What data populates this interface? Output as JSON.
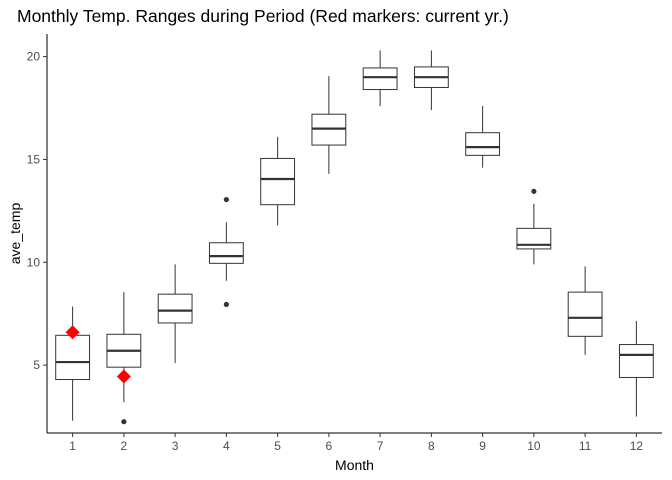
{
  "chart_data": {
    "type": "boxplot",
    "title": "Monthly Temp. Ranges during Period (Red markers: current yr.)",
    "xlabel": "Month",
    "ylabel": "ave_temp",
    "ylim": [
      1.7,
      21.1
    ],
    "yticks": [
      5,
      10,
      15,
      20
    ],
    "grid": false,
    "categories": [
      "1",
      "2",
      "3",
      "4",
      "5",
      "6",
      "7",
      "8",
      "9",
      "10",
      "11",
      "12"
    ],
    "boxes": [
      {
        "month": "1",
        "whisker_low": 2.3,
        "q1": 4.3,
        "median": 5.15,
        "q3": 6.45,
        "whisker_high": 7.85,
        "outliers": []
      },
      {
        "month": "2",
        "whisker_low": 3.2,
        "q1": 4.9,
        "median": 5.7,
        "q3": 6.5,
        "whisker_high": 8.55,
        "outliers": [
          2.25
        ]
      },
      {
        "month": "3",
        "whisker_low": 5.1,
        "q1": 7.05,
        "median": 7.65,
        "q3": 8.45,
        "whisker_high": 9.9,
        "outliers": []
      },
      {
        "month": "4",
        "whisker_low": 9.1,
        "q1": 9.95,
        "median": 10.3,
        "q3": 10.95,
        "whisker_high": 11.95,
        "outliers": [
          13.05,
          7.95
        ]
      },
      {
        "month": "5",
        "whisker_low": 11.8,
        "q1": 12.8,
        "median": 14.05,
        "q3": 15.05,
        "whisker_high": 16.1,
        "outliers": []
      },
      {
        "month": "6",
        "whisker_low": 14.3,
        "q1": 15.7,
        "median": 16.5,
        "q3": 17.2,
        "whisker_high": 19.05,
        "outliers": []
      },
      {
        "month": "7",
        "whisker_low": 17.6,
        "q1": 18.4,
        "median": 19.0,
        "q3": 19.45,
        "whisker_high": 20.3,
        "outliers": []
      },
      {
        "month": "8",
        "whisker_low": 17.4,
        "q1": 18.5,
        "median": 19.0,
        "q3": 19.5,
        "whisker_high": 20.3,
        "outliers": []
      },
      {
        "month": "9",
        "whisker_low": 14.6,
        "q1": 15.2,
        "median": 15.6,
        "q3": 16.3,
        "whisker_high": 17.6,
        "outliers": []
      },
      {
        "month": "10",
        "whisker_low": 9.9,
        "q1": 10.65,
        "median": 10.85,
        "q3": 11.65,
        "whisker_high": 12.85,
        "outliers": [
          13.45
        ]
      },
      {
        "month": "11",
        "whisker_low": 5.5,
        "q1": 6.4,
        "median": 7.3,
        "q3": 8.55,
        "whisker_high": 9.8,
        "outliers": []
      },
      {
        "month": "12",
        "whisker_low": 2.5,
        "q1": 4.4,
        "median": 5.5,
        "q3": 6.0,
        "whisker_high": 7.15,
        "outliers": []
      }
    ],
    "current_year_markers": [
      {
        "month": "1",
        "value": 6.6
      },
      {
        "month": "2",
        "value": 4.45
      }
    ],
    "colors": {
      "box_outline": "#333333",
      "box_fill": "#ffffff",
      "outlier": "#333333",
      "marker": "#ff0000",
      "axis": "#000000",
      "tick_label": "#4d4d4d"
    }
  }
}
